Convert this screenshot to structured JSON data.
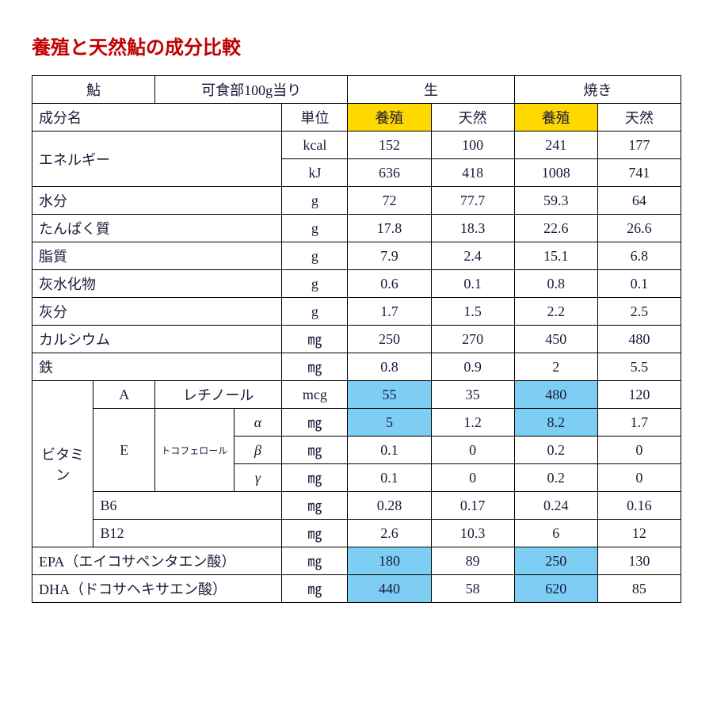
{
  "title": "養殖と天然鮎の成分比較",
  "colors": {
    "title": "#c00000",
    "yellow": "#ffd800",
    "blue": "#7ecef4",
    "border": "#000000",
    "text": "#1a1a3a",
    "bg": "#ffffff"
  },
  "header": {
    "fish": "鮎",
    "per100g": "可食部100g当り",
    "raw": "生",
    "grilled": "焼き",
    "component": "成分名",
    "unit": "単位",
    "farmed": "養殖",
    "wild": "天然"
  },
  "rows": {
    "energy": {
      "label": "エネルギー",
      "kcal_unit": "kcal",
      "kcal": [
        "152",
        "100",
        "241",
        "177"
      ],
      "kj_unit": "kJ",
      "kj": [
        "636",
        "418",
        "1008",
        "741"
      ]
    },
    "water": {
      "label": "水分",
      "unit": "g",
      "vals": [
        "72",
        "77.7",
        "59.3",
        "64"
      ]
    },
    "protein": {
      "label": "たんぱく質",
      "unit": "g",
      "vals": [
        "17.8",
        "18.3",
        "22.6",
        "26.6"
      ]
    },
    "fat": {
      "label": "脂質",
      "unit": "g",
      "vals": [
        "7.9",
        "2.4",
        "15.1",
        "6.8"
      ]
    },
    "carb": {
      "label": "灰水化物",
      "unit": "g",
      "vals": [
        "0.6",
        "0.1",
        "0.8",
        "0.1"
      ]
    },
    "ash": {
      "label": "灰分",
      "unit": "g",
      "vals": [
        "1.7",
        "1.5",
        "2.2",
        "2.5"
      ]
    },
    "calcium": {
      "label": "カルシウム",
      "unit": "㎎",
      "vals": [
        "250",
        "270",
        "450",
        "480"
      ]
    },
    "iron": {
      "label": "鉄",
      "unit": "㎎",
      "vals": [
        "0.8",
        "0.9",
        "2",
        "5.5"
      ]
    },
    "vitamin": "ビタミン",
    "vitA": {
      "label": "A",
      "sub": "レチノール",
      "unit": "mcg",
      "vals": [
        "55",
        "35",
        "480",
        "120"
      ]
    },
    "vitE": {
      "label": "E",
      "sub": "トコフェロール",
      "alpha": {
        "sym": "α",
        "unit": "㎎",
        "vals": [
          "5",
          "1.2",
          "8.2",
          "1.7"
        ]
      },
      "beta": {
        "sym": "β",
        "unit": "㎎",
        "vals": [
          "0.1",
          "0",
          "0.2",
          "0"
        ]
      },
      "gamma": {
        "sym": "γ",
        "unit": "㎎",
        "vals": [
          "0.1",
          "0",
          "0.2",
          "0"
        ]
      }
    },
    "b6": {
      "label": "B6",
      "unit": "㎎",
      "vals": [
        "0.28",
        "0.17",
        "0.24",
        "0.16"
      ]
    },
    "b12": {
      "label": "B12",
      "unit": "㎎",
      "vals": [
        "2.6",
        "10.3",
        "6",
        "12"
      ]
    },
    "epa": {
      "label": "EPA（エイコサペンタエン酸）",
      "unit": "㎎",
      "vals": [
        "180",
        "89",
        "250",
        "130"
      ]
    },
    "dha": {
      "label": "DHA（ドコサヘキサエン酸）",
      "unit": "㎎",
      "vals": [
        "440",
        "58",
        "620",
        "85"
      ]
    }
  }
}
